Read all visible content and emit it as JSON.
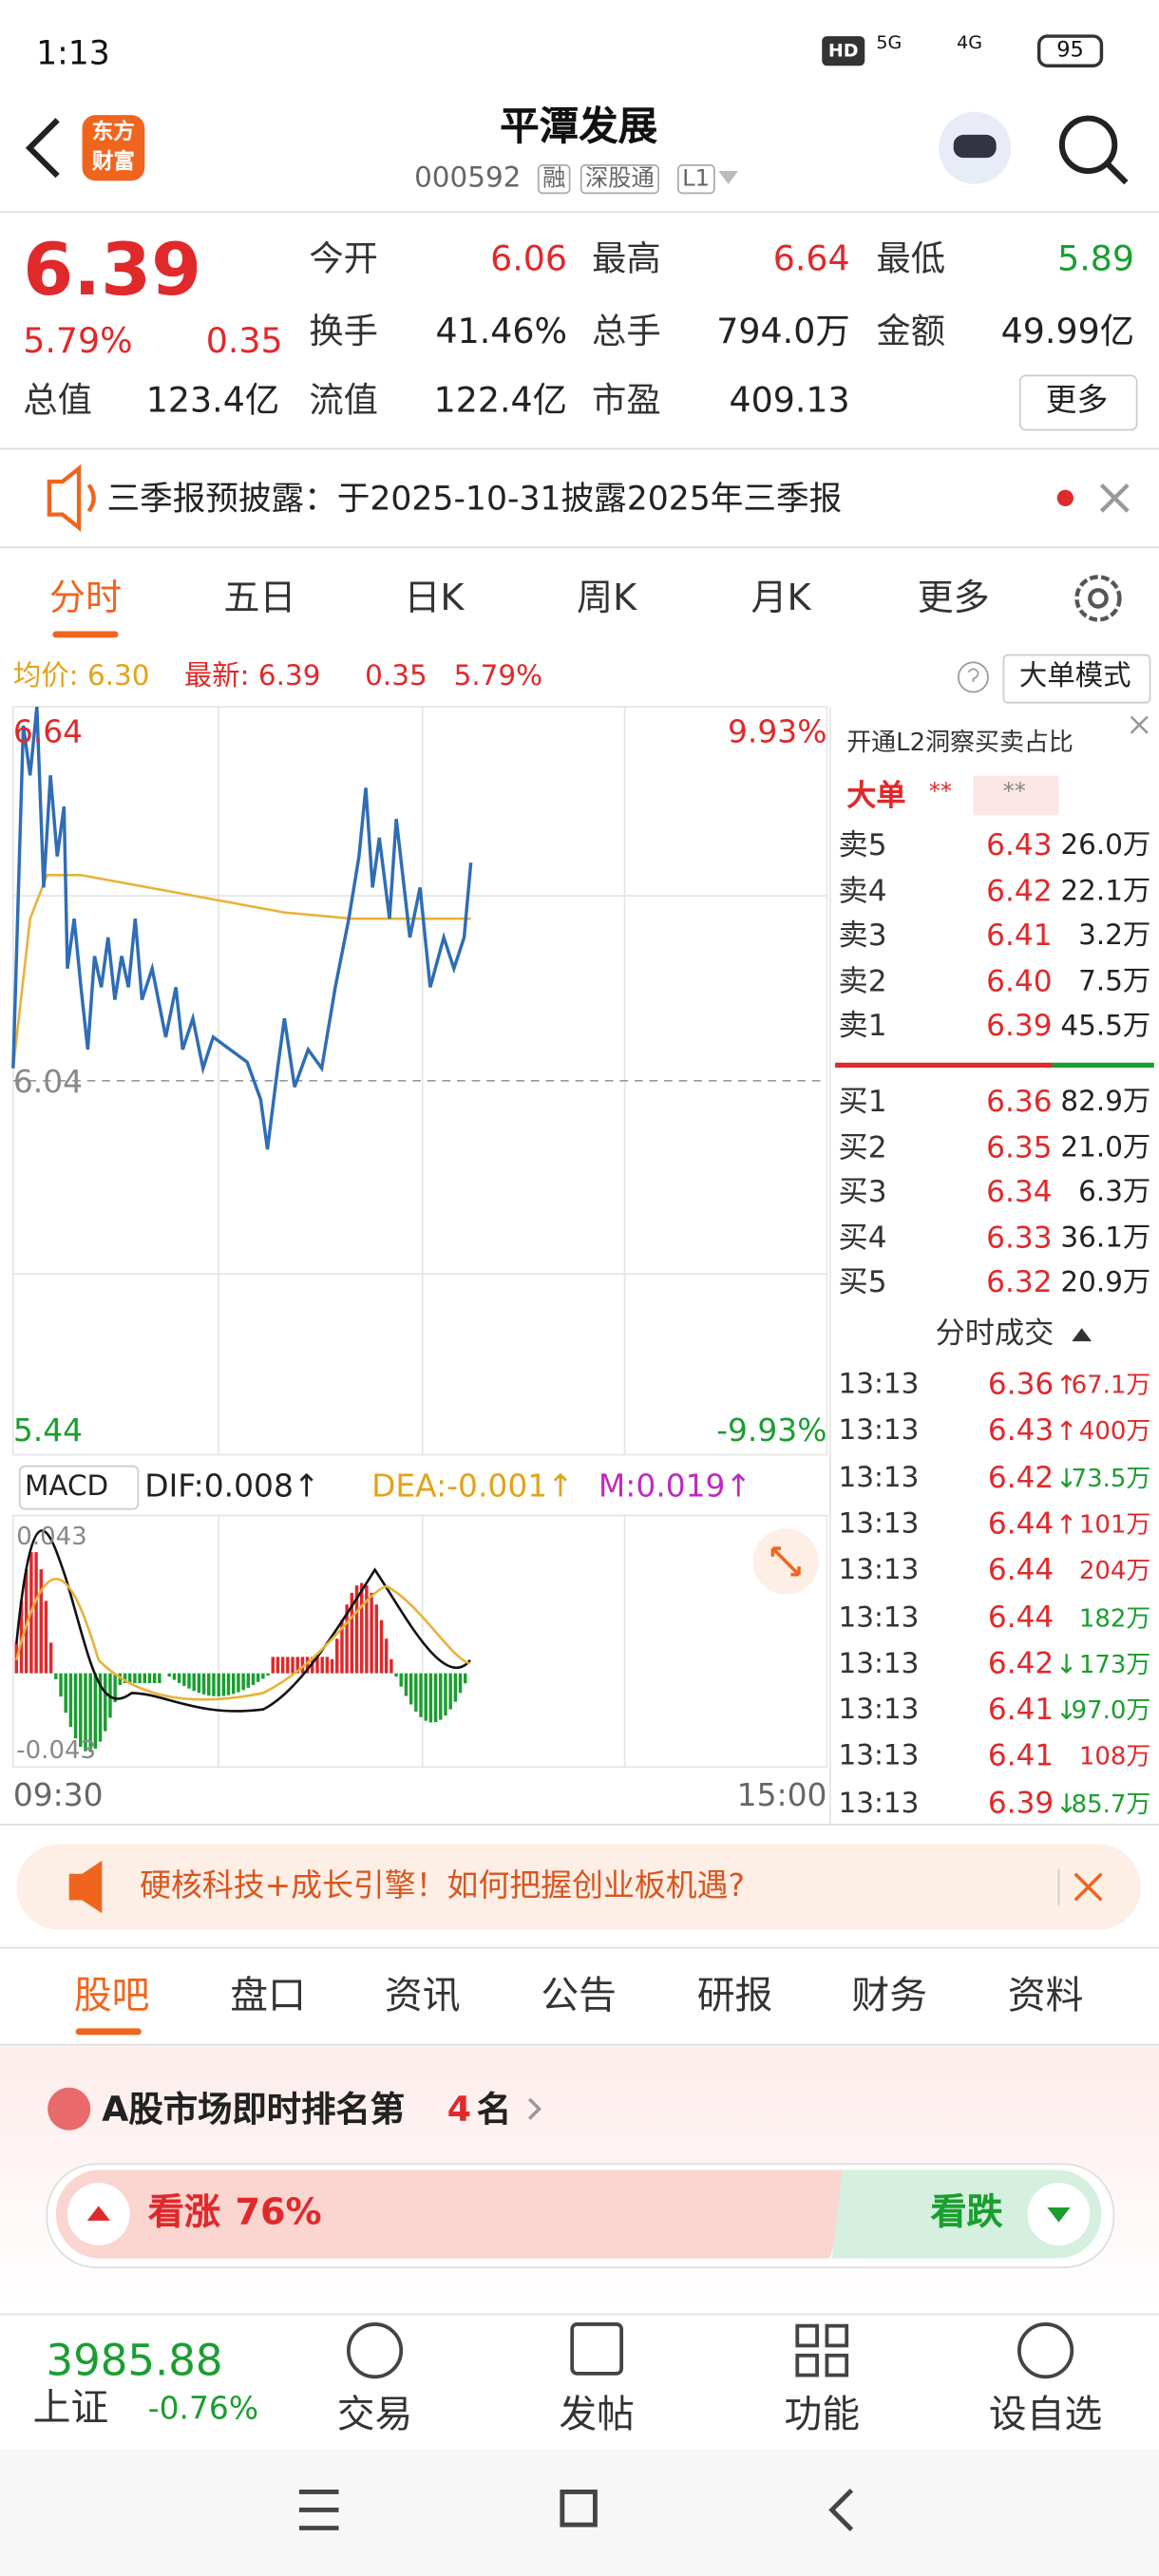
{
  "status_bar": {
    "time": "1:13",
    "hd": "HD",
    "net1": "5G",
    "net2": "4G",
    "battery": "95"
  },
  "header": {
    "logo": [
      "东方",
      "财富"
    ],
    "title": "平潭发展",
    "code": "000592",
    "tags": [
      "融",
      "深股通",
      "L1"
    ]
  },
  "quote": {
    "price": "6.39",
    "change_pct": "5.79%",
    "change": "0.35",
    "more": "更多",
    "rows": [
      [
        {
          "label": "今开",
          "value": "6.06",
          "color": "red"
        },
        {
          "label": "最高",
          "value": "6.64",
          "color": "red"
        },
        {
          "label": "最低",
          "value": "5.89",
          "color": "green"
        }
      ],
      [
        {
          "label": "换手",
          "value": "41.46%",
          "color": "black"
        },
        {
          "label": "总手",
          "value": "794.0万",
          "color": "black"
        },
        {
          "label": "金额",
          "value": "49.99亿",
          "color": "black"
        }
      ],
      [
        {
          "label": "总值",
          "value": "123.4亿",
          "color": "black"
        },
        {
          "label": "流值",
          "value": "122.4亿",
          "color": "black"
        },
        {
          "label": "市盈",
          "value": "409.13",
          "color": "black"
        }
      ]
    ]
  },
  "notice": {
    "text": "三季报预披露：于2025-10-31披露2025年三季报"
  },
  "chart_tabs": [
    "分时",
    "五日",
    "日K",
    "周K",
    "月K",
    "更多"
  ],
  "info": {
    "avg": "均价: 6.30",
    "latest": "最新: 6.39",
    "change": "0.35",
    "pct": "5.79%",
    "mode": "大单模式"
  },
  "intraday": {
    "type": "line",
    "xlim": [
      0,
      240
    ],
    "ylim": [
      5.44,
      6.64
    ],
    "labels": {
      "high": "6.64",
      "high_pct": "9.93%",
      "pre_close": "6.04",
      "low": "5.44",
      "low_pct": "-9.93%",
      "start": "09:30",
      "end": "15:00"
    },
    "price": {
      "color": "#2f6db5",
      "x": [
        0,
        3,
        5,
        7,
        9,
        11,
        13,
        15,
        16,
        18,
        20,
        22,
        24,
        26,
        28,
        30,
        32,
        34,
        36,
        38,
        41,
        45,
        48,
        50,
        53,
        56,
        59,
        64,
        69,
        73,
        75,
        78,
        80,
        83,
        87,
        91,
        95,
        99,
        102,
        104,
        106,
        108,
        111,
        113,
        117,
        120,
        123,
        127,
        130,
        133,
        135
      ],
      "values": [
        6.06,
        6.61,
        6.53,
        6.64,
        6.35,
        6.53,
        6.4,
        6.48,
        6.22,
        6.3,
        6.19,
        6.09,
        6.24,
        6.19,
        6.27,
        6.17,
        6.24,
        6.19,
        6.3,
        6.17,
        6.22,
        6.11,
        6.19,
        6.09,
        6.14,
        6.06,
        6.11,
        6.09,
        6.07,
        6.01,
        5.93,
        6.06,
        6.14,
        6.03,
        6.09,
        6.06,
        6.19,
        6.3,
        6.4,
        6.51,
        6.35,
        6.43,
        6.3,
        6.46,
        6.27,
        6.35,
        6.19,
        6.27,
        6.22,
        6.27,
        6.39
      ]
    },
    "avg": {
      "color": "#e8b23a",
      "x": [
        0,
        5,
        10,
        20,
        40,
        60,
        80,
        100,
        120,
        135
      ],
      "values": [
        6.06,
        6.3,
        6.37,
        6.37,
        6.35,
        6.33,
        6.31,
        6.3,
        6.3,
        6.3
      ]
    }
  },
  "macd": {
    "label": "MACD",
    "dif": "DIF:0.008↑",
    "dea": "DEA:-0.001↑",
    "m": "M:0.019↑",
    "top": "0.043",
    "bottom": "-0.043"
  },
  "order_book": {
    "l2": "开通L2洞察买卖占比",
    "big": "大单",
    "stars": [
      "**",
      "**"
    ],
    "asks": [
      {
        "label": "卖5",
        "price": "6.43",
        "vol": "26.0万"
      },
      {
        "label": "卖4",
        "price": "6.42",
        "vol": "22.1万"
      },
      {
        "label": "卖3",
        "price": "6.41",
        "vol": "3.2万"
      },
      {
        "label": "卖2",
        "price": "6.40",
        "vol": "7.5万"
      },
      {
        "label": "卖1",
        "price": "6.39",
        "vol": "45.5万"
      }
    ],
    "bids": [
      {
        "label": "买1",
        "price": "6.36",
        "vol": "82.9万"
      },
      {
        "label": "买2",
        "price": "6.35",
        "vol": "21.0万"
      },
      {
        "label": "买3",
        "price": "6.34",
        "vol": "6.3万"
      },
      {
        "label": "买4",
        "price": "6.33",
        "vol": "36.1万"
      },
      {
        "label": "买5",
        "price": "6.32",
        "vol": "20.9万"
      }
    ]
  },
  "trades": {
    "title": "分时成交",
    "rows": [
      {
        "time": "13:13",
        "price": "6.36",
        "dir": "↑",
        "vol": "67.1万",
        "color": "red"
      },
      {
        "time": "13:13",
        "price": "6.43",
        "dir": "↑",
        "vol": "400万",
        "color": "red"
      },
      {
        "time": "13:13",
        "price": "6.42",
        "dir": "↓",
        "vol": "73.5万",
        "color": "green"
      },
      {
        "time": "13:13",
        "price": "6.44",
        "dir": "↑",
        "vol": "101万",
        "color": "red"
      },
      {
        "time": "13:13",
        "price": "6.44",
        "vol": "204万",
        "color": "red"
      },
      {
        "time": "13:13",
        "price": "6.44",
        "vol": "182万",
        "color": "green"
      },
      {
        "time": "13:13",
        "price": "6.42",
        "dir": "↓",
        "vol": "173万",
        "color": "green"
      },
      {
        "time": "13:13",
        "price": "6.41",
        "dir": "↓",
        "vol": "97.0万",
        "color": "green"
      },
      {
        "time": "13:13",
        "price": "6.41",
        "vol": "108万",
        "color": "red"
      },
      {
        "time": "13:13",
        "price": "6.39",
        "dir": "↓",
        "vol": "85.7万",
        "color": "green"
      }
    ]
  },
  "ad": {
    "text": "硬核科技+成长引擎！如何把握创业板机遇?"
  },
  "bottom_tabs": [
    "股吧",
    "盘口",
    "资讯",
    "公告",
    "研报",
    "财务",
    "资料"
  ],
  "ranking": {
    "prefix": "A股市场即时排名第",
    "rank": "4",
    "suffix": "名"
  },
  "vote": {
    "up": "看涨",
    "up_pct": "76%",
    "down": "看跌"
  },
  "index": {
    "value": "3985.88",
    "name": "上证",
    "change": "-0.76%"
  },
  "nav": [
    "交易",
    "发帖",
    "功能",
    "设自选"
  ]
}
